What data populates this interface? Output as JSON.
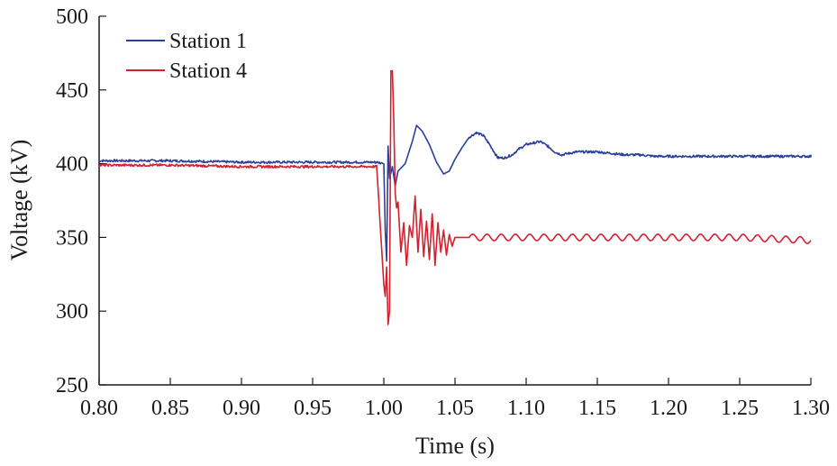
{
  "chart_data": {
    "type": "line",
    "xlabel": "Time (s)",
    "ylabel": "Voltage (kV)",
    "xlim": [
      0.8,
      1.3
    ],
    "ylim": [
      250,
      500
    ],
    "xticks": [
      "0.80",
      "0.85",
      "0.90",
      "0.95",
      "1.00",
      "1.05",
      "1.10",
      "1.15",
      "1.20",
      "1.25",
      "1.30"
    ],
    "yticks": [
      "250",
      "300",
      "350",
      "400",
      "450",
      "500"
    ],
    "grid": false,
    "legend_position": "top-left",
    "series": [
      {
        "name": "Station 1",
        "color": "#2a3f9a",
        "x": [
          0.8,
          0.85,
          0.9,
          0.95,
          0.995,
          1.0,
          1.001,
          1.002,
          1.003,
          1.004,
          1.006,
          1.008,
          1.01,
          1.015,
          1.02,
          1.023,
          1.027,
          1.032,
          1.037,
          1.042,
          1.046,
          1.05,
          1.055,
          1.06,
          1.065,
          1.07,
          1.075,
          1.08,
          1.085,
          1.09,
          1.095,
          1.1,
          1.105,
          1.11,
          1.115,
          1.12,
          1.125,
          1.13,
          1.135,
          1.14,
          1.15,
          1.16,
          1.17,
          1.18,
          1.19,
          1.2,
          1.22,
          1.24,
          1.26,
          1.28,
          1.3
        ],
        "values": [
          402,
          402,
          401,
          401,
          401,
          400,
          355,
          334,
          412,
          390,
          398,
          385,
          395,
          400,
          415,
          426,
          422,
          413,
          401,
          393,
          395,
          403,
          411,
          418,
          421,
          419,
          412,
          404,
          404,
          406,
          410,
          413,
          414,
          415,
          412,
          408,
          406,
          407,
          408,
          408,
          408,
          407,
          406,
          406,
          405,
          405,
          405,
          405,
          405,
          405,
          405
        ]
      },
      {
        "name": "Station 4",
        "color": "#d4202f",
        "x": [
          0.8,
          0.85,
          0.9,
          0.95,
          0.995,
          1.0,
          1.001,
          1.002,
          1.003,
          1.004,
          1.005,
          1.006,
          1.007,
          1.008,
          1.009,
          1.01,
          1.012,
          1.014,
          1.016,
          1.018,
          1.02,
          1.022,
          1.024,
          1.026,
          1.028,
          1.03,
          1.032,
          1.034,
          1.036,
          1.038,
          1.04,
          1.042,
          1.044,
          1.046,
          1.048,
          1.05,
          1.055,
          1.06,
          1.08,
          1.1,
          1.15,
          1.2,
          1.25,
          1.3
        ],
        "values": [
          399,
          399,
          398,
          398,
          398,
          318,
          310,
          330,
          291,
          300,
          463,
          463,
          430,
          380,
          370,
          374,
          340,
          360,
          331,
          358,
          350,
          378,
          340,
          369,
          337,
          361,
          335,
          366,
          331,
          360,
          340,
          355,
          338,
          352,
          344,
          350,
          350,
          350,
          350,
          350,
          350,
          350,
          350,
          348
        ]
      }
    ]
  }
}
